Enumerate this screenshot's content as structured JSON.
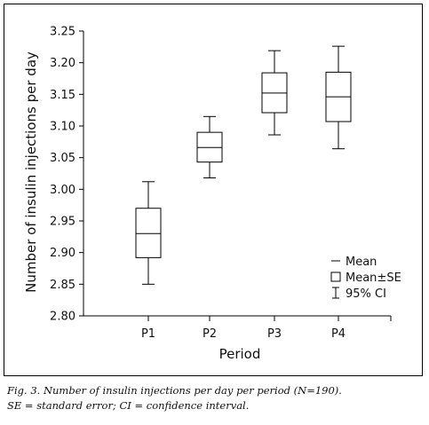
{
  "chart_data": {
    "type": "box",
    "title": "",
    "xlabel": "Period",
    "ylabel": "Number of insulin injections per day",
    "categories": [
      "P1",
      "P2",
      "P3",
      "P4"
    ],
    "ylim": [
      2.8,
      3.25
    ],
    "yticks": [
      "2.80",
      "2.85",
      "2.90",
      "2.95",
      "3.00",
      "3.05",
      "3.10",
      "3.15",
      "3.20",
      "3.25"
    ],
    "series": [
      {
        "category": "P1",
        "mean": 2.93,
        "se_low": 2.892,
        "se_high": 2.97,
        "ci_low": 2.85,
        "ci_high": 3.012
      },
      {
        "category": "P2",
        "mean": 3.066,
        "se_low": 3.043,
        "se_high": 3.09,
        "ci_low": 3.018,
        "ci_high": 3.115
      },
      {
        "category": "P3",
        "mean": 3.152,
        "se_low": 3.121,
        "se_high": 3.184,
        "ci_low": 3.086,
        "ci_high": 3.219
      },
      {
        "category": "P4",
        "mean": 3.146,
        "se_low": 3.107,
        "se_high": 3.185,
        "ci_low": 3.064,
        "ci_high": 3.226
      }
    ],
    "legend": {
      "placement": "bottom-right",
      "items": [
        {
          "label": "Mean",
          "symbol": "line"
        },
        {
          "label": "Mean±SE",
          "symbol": "box"
        },
        {
          "label": "95% CI",
          "symbol": "whisker"
        }
      ]
    },
    "grid": false
  },
  "caption": {
    "line1": "Fig. 3. Number of insulin injections per day per period (N=190).",
    "line2": "SE = standard error; CI = confidence interval."
  }
}
